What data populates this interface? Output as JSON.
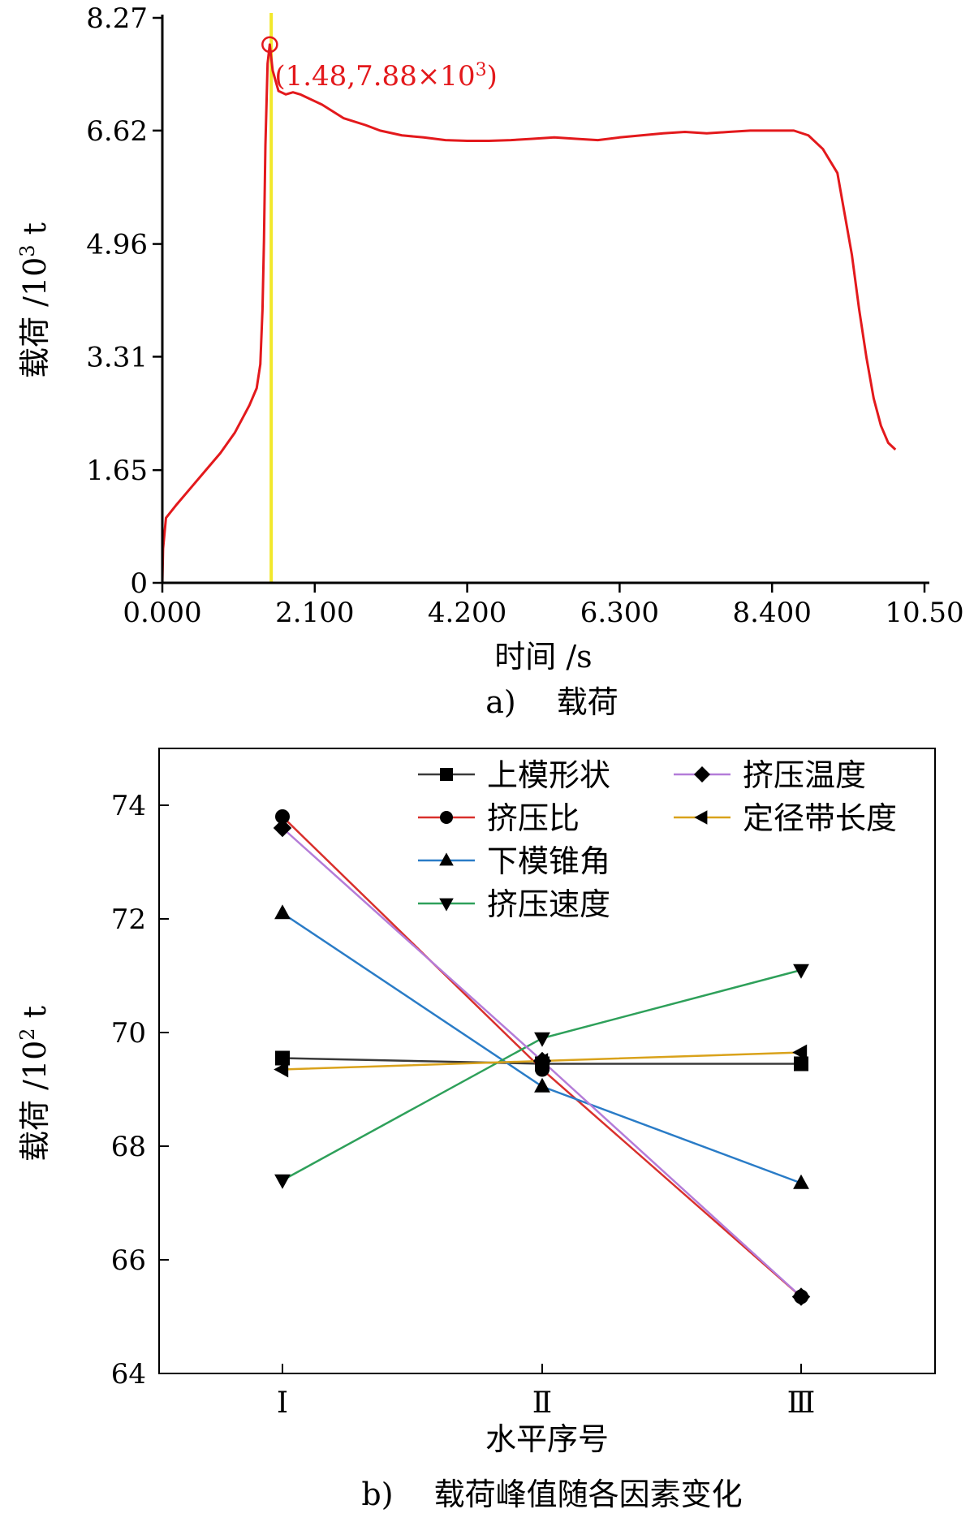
{
  "chart_data": [
    {
      "id": "a",
      "type": "line",
      "caption": "a)　 载荷",
      "xlabel": "时间 /s",
      "ylabel": "载荷 /10",
      "ylabel_sup": "3",
      "ylabel_unit": " t",
      "xlim": [
        0,
        10.5
      ],
      "ylim": [
        0,
        8.27
      ],
      "xticks": [
        {
          "value": 0,
          "label": "0.000"
        },
        {
          "value": 2.1,
          "label": "2.100"
        },
        {
          "value": 4.2,
          "label": "4.200"
        },
        {
          "value": 6.3,
          "label": "6.300"
        },
        {
          "value": 8.4,
          "label": "8.400"
        },
        {
          "value": 10.5,
          "label": "10.50"
        }
      ],
      "yticks": [
        {
          "value": 0,
          "label": "0"
        },
        {
          "value": 1.65,
          "label": "1.65"
        },
        {
          "value": 3.31,
          "label": "3.31"
        },
        {
          "value": 4.96,
          "label": "4.96"
        },
        {
          "value": 6.62,
          "label": "6.62"
        },
        {
          "value": 8.27,
          "label": "8.27"
        }
      ],
      "series": [
        {
          "color": "#e3191c",
          "x": [
            0.0,
            0.01,
            0.05,
            0.2,
            0.4,
            0.6,
            0.8,
            1.0,
            1.2,
            1.3,
            1.35,
            1.38,
            1.4,
            1.42,
            1.45,
            1.48,
            1.52,
            1.6,
            1.7,
            1.8,
            1.9,
            2.0,
            2.2,
            2.5,
            2.8,
            3.0,
            3.3,
            3.6,
            3.9,
            4.2,
            4.5,
            4.8,
            5.1,
            5.4,
            5.7,
            6.0,
            6.3,
            6.6,
            6.9,
            7.2,
            7.5,
            7.8,
            8.1,
            8.4,
            8.7,
            8.9,
            9.1,
            9.3,
            9.4,
            9.5,
            9.6,
            9.7,
            9.8,
            9.9,
            10.0,
            10.1
          ],
          "y": [
            0.0,
            0.5,
            0.95,
            1.15,
            1.4,
            1.65,
            1.9,
            2.2,
            2.6,
            2.85,
            3.2,
            4.0,
            5.0,
            6.4,
            7.6,
            7.88,
            7.5,
            7.2,
            7.15,
            7.18,
            7.15,
            7.1,
            7.0,
            6.8,
            6.7,
            6.62,
            6.55,
            6.52,
            6.48,
            6.47,
            6.47,
            6.48,
            6.5,
            6.52,
            6.5,
            6.48,
            6.52,
            6.55,
            6.58,
            6.6,
            6.58,
            6.6,
            6.62,
            6.62,
            6.62,
            6.55,
            6.35,
            6.0,
            5.4,
            4.8,
            4.0,
            3.3,
            2.7,
            2.3,
            2.05,
            1.95
          ]
        }
      ],
      "vline": {
        "x": 1.5,
        "color": "#f2e82b"
      },
      "annotation": {
        "x": 1.48,
        "y": 7.88,
        "text": "(1.48,7.88×10",
        "sup": "3",
        "close": ")",
        "color": "#e3191c"
      }
    },
    {
      "id": "b",
      "type": "line",
      "caption": "b)　 载荷峰值随各因素变化",
      "xlabel": "水平序号",
      "ylabel": "载荷 /10",
      "ylabel_sup": "2",
      "ylabel_unit": " t",
      "categories": [
        "Ⅰ",
        "Ⅱ",
        "Ⅲ"
      ],
      "ylim": [
        64,
        75
      ],
      "yticks": [
        64,
        66,
        68,
        70,
        72,
        74
      ],
      "legend_position": "top-right",
      "series": [
        {
          "name": "上模形状",
          "marker": "square",
          "color": "#3a3a3a",
          "values": [
            69.55,
            69.45,
            69.45
          ]
        },
        {
          "name": "挤压比",
          "marker": "circle",
          "color": "#d9302c",
          "values": [
            73.8,
            69.35,
            65.35
          ]
        },
        {
          "name": "下模锥角",
          "marker": "triangle-up",
          "color": "#2a7cc7",
          "values": [
            72.1,
            69.05,
            67.35
          ]
        },
        {
          "name": "挤压速度",
          "marker": "triangle-down",
          "color": "#2ea05a",
          "values": [
            67.4,
            69.9,
            71.1
          ]
        },
        {
          "name": "挤压温度",
          "marker": "diamond",
          "color": "#b47cd8",
          "values": [
            73.6,
            69.5,
            65.35
          ]
        },
        {
          "name": "定径带长度",
          "marker": "triangle-left",
          "color": "#d9a21b",
          "values": [
            69.35,
            69.5,
            69.65
          ]
        }
      ]
    }
  ]
}
